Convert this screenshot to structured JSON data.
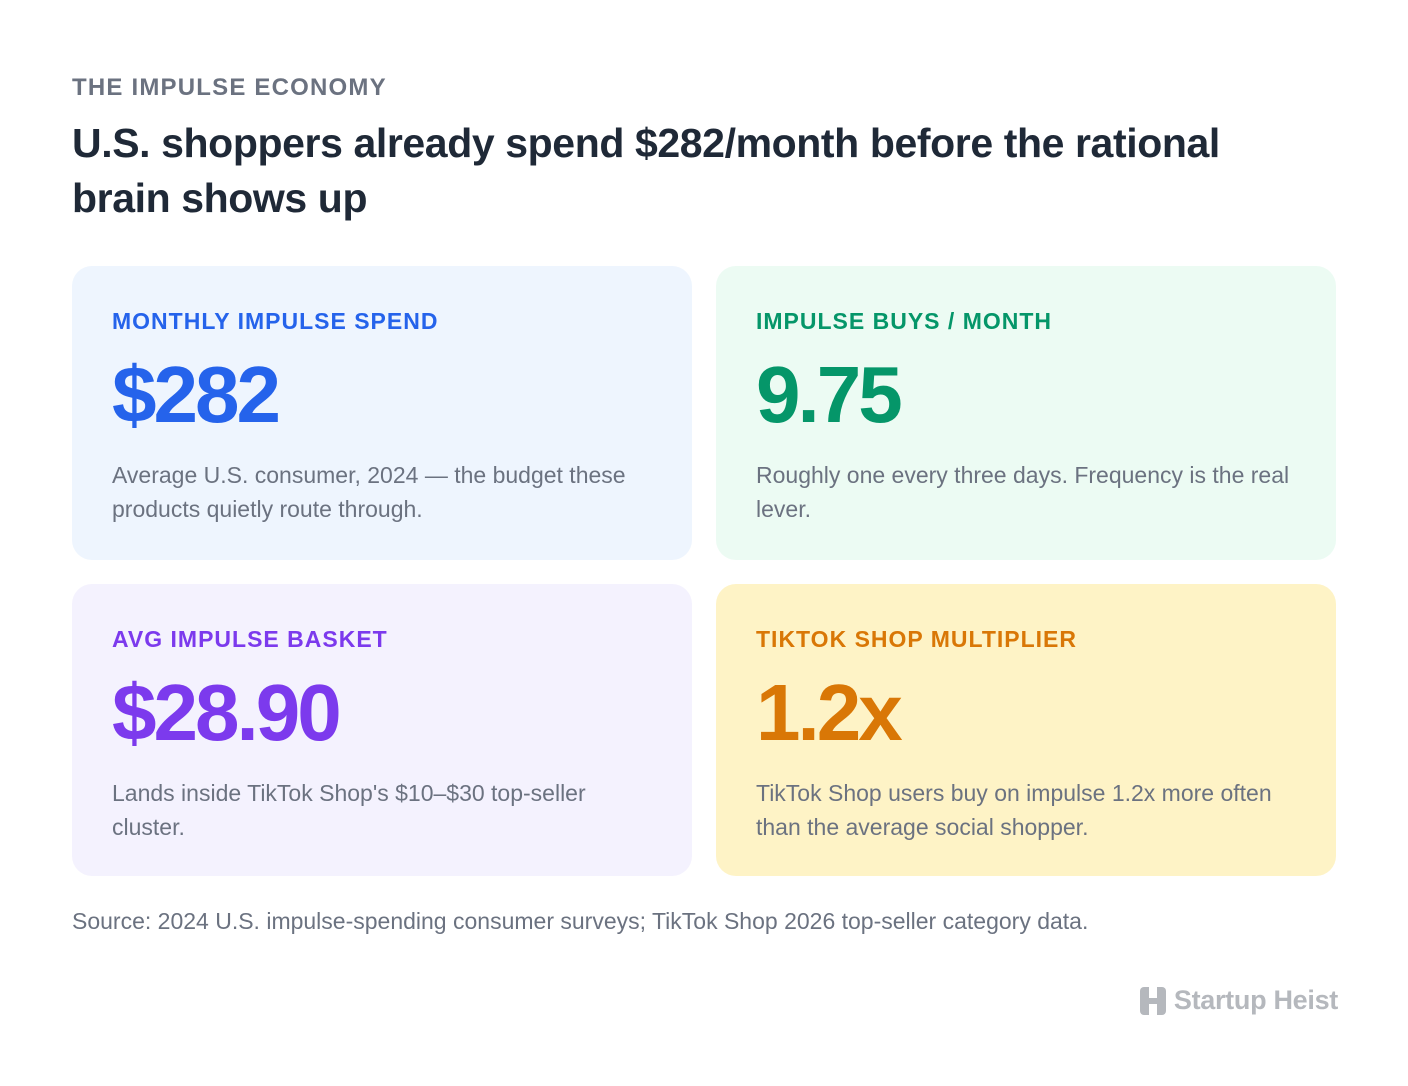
{
  "header": {
    "eyebrow": "THE IMPULSE ECONOMY",
    "headline": "U.S. shoppers already spend $282/month before the rational brain shows up"
  },
  "cards": [
    {
      "label": "MONTHLY IMPULSE SPEND",
      "value": "$282",
      "description": "Average U.S. consumer, 2024 — the budget these products quietly route through.",
      "accent": "#2563eb",
      "background": "#eef5fe"
    },
    {
      "label": "IMPULSE BUYS / MONTH",
      "value": "9.75",
      "description": "Roughly one every three days. Frequency is the real lever.",
      "accent": "#059669",
      "background": "#ecfbf3"
    },
    {
      "label": "AVG IMPULSE BASKET",
      "value": "$28.90",
      "description": "Lands inside TikTok Shop's $10–$30 top-seller cluster.",
      "accent": "#7c3aed",
      "background": "#f4f2fe"
    },
    {
      "label": "TIKTOK SHOP MULTIPLIER",
      "value": "1.2x",
      "description": "TikTok Shop users buy on impulse 1.2x more often than the average social shopper.",
      "accent": "#d97706",
      "background": "#fef3c6"
    }
  ],
  "footer": {
    "source": "Source: 2024 U.S. impulse-spending consumer surveys; TikTok Shop 2026 top-seller category data.",
    "brand_name": "Startup Heist",
    "brand_icon": "heist-logo-icon"
  }
}
